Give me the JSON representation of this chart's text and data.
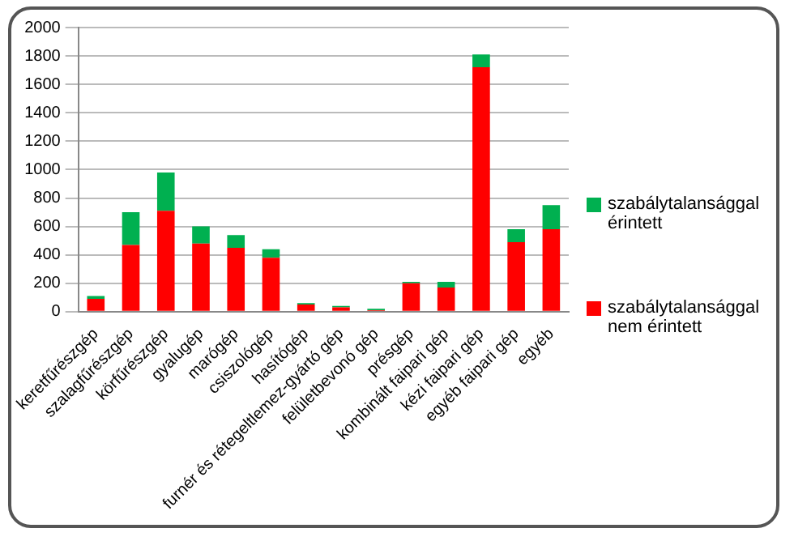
{
  "chart_data": {
    "type": "bar",
    "stacked": true,
    "categories": [
      "keretfűrészgép",
      "szalagfűrészgép",
      "körfűrészgép",
      "gyalugép",
      "marógép",
      "csiszológép",
      "hasítógép",
      "furnér és rétegeltlemez-gyártó gép",
      "felületbevonó gép",
      "présgép",
      "kombinált faipari gép",
      "kézi faipari gép",
      "egyéb faipari gép",
      "egyéb"
    ],
    "series": [
      {
        "name": "szabálytalansággal nem érintett",
        "color": "#ff0000",
        "values": [
          90,
          470,
          710,
          480,
          450,
          380,
          50,
          30,
          10,
          200,
          170,
          1720,
          490,
          580
        ]
      },
      {
        "name": "szabálytalansággal érintett",
        "color": "#00b050",
        "values": [
          20,
          230,
          270,
          120,
          90,
          60,
          10,
          10,
          10,
          10,
          40,
          90,
          90,
          170
        ]
      }
    ],
    "ylim": [
      0,
      2000
    ],
    "yticks": [
      0,
      200,
      400,
      600,
      800,
      1000,
      1200,
      1400,
      1600,
      1800,
      2000
    ],
    "grid": "y",
    "legend": "right"
  }
}
